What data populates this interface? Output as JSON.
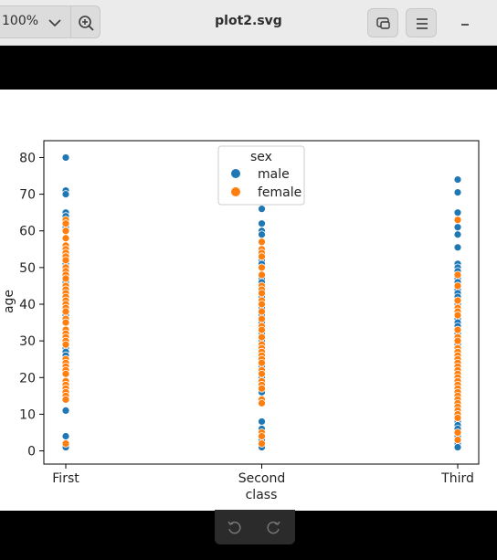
{
  "toolbar": {
    "zoom_value": "100%",
    "file_title": "plot2.svg",
    "zoom_menu_icon": "chevron-down-icon",
    "zoom_in_icon": "zoom-in-icon",
    "window_icon": "restore-window-icon",
    "menu_icon": "hamburger-menu-icon",
    "minimize_icon": "minimize-icon"
  },
  "bottom": {
    "rotate_left_icon": "rotate-left-icon",
    "rotate_right_icon": "rotate-right-icon"
  },
  "chart_data": {
    "type": "scatter",
    "xlabel": "class",
    "ylabel": "age",
    "categories": [
      "First",
      "Second",
      "Third"
    ],
    "yticks": [
      0,
      10,
      20,
      30,
      40,
      50,
      60,
      70,
      80
    ],
    "ylim": [
      -3.6,
      84.6
    ],
    "legend": {
      "title": "sex",
      "placement": "top-center"
    },
    "grid": false,
    "colors": {
      "male": "#1f77b4",
      "female": "#ff7f0e"
    },
    "series": [
      {
        "name": "male",
        "points": [
          {
            "x": "First",
            "y": 80
          },
          {
            "x": "First",
            "y": 71
          },
          {
            "x": "First",
            "y": 70
          },
          {
            "x": "First",
            "y": 65
          },
          {
            "x": "First",
            "y": 64
          },
          {
            "x": "First",
            "y": 62
          },
          {
            "x": "First",
            "y": 61
          },
          {
            "x": "First",
            "y": 60
          },
          {
            "x": "First",
            "y": 58
          },
          {
            "x": "First",
            "y": 56
          },
          {
            "x": "First",
            "y": 55
          },
          {
            "x": "First",
            "y": 54
          },
          {
            "x": "First",
            "y": 52
          },
          {
            "x": "First",
            "y": 51
          },
          {
            "x": "First",
            "y": 50
          },
          {
            "x": "First",
            "y": 49
          },
          {
            "x": "First",
            "y": 48
          },
          {
            "x": "First",
            "y": 47
          },
          {
            "x": "First",
            "y": 46
          },
          {
            "x": "First",
            "y": 45
          },
          {
            "x": "First",
            "y": 42
          },
          {
            "x": "First",
            "y": 40
          },
          {
            "x": "First",
            "y": 39
          },
          {
            "x": "First",
            "y": 38
          },
          {
            "x": "First",
            "y": 37
          },
          {
            "x": "First",
            "y": 36
          },
          {
            "x": "First",
            "y": 35
          },
          {
            "x": "First",
            "y": 33
          },
          {
            "x": "First",
            "y": 31
          },
          {
            "x": "First",
            "y": 30
          },
          {
            "x": "First",
            "y": 28
          },
          {
            "x": "First",
            "y": 27
          },
          {
            "x": "First",
            "y": 26
          },
          {
            "x": "First",
            "y": 24
          },
          {
            "x": "First",
            "y": 23
          },
          {
            "x": "First",
            "y": 21
          },
          {
            "x": "First",
            "y": 19
          },
          {
            "x": "First",
            "y": 18
          },
          {
            "x": "First",
            "y": 17
          },
          {
            "x": "First",
            "y": 11
          },
          {
            "x": "First",
            "y": 4
          },
          {
            "x": "First",
            "y": 1
          },
          {
            "x": "Second",
            "y": 66
          },
          {
            "x": "Second",
            "y": 62
          },
          {
            "x": "Second",
            "y": 60
          },
          {
            "x": "Second",
            "y": 59
          },
          {
            "x": "Second",
            "y": 57
          },
          {
            "x": "Second",
            "y": 54
          },
          {
            "x": "Second",
            "y": 52
          },
          {
            "x": "Second",
            "y": 51
          },
          {
            "x": "Second",
            "y": 50
          },
          {
            "x": "Second",
            "y": 47
          },
          {
            "x": "Second",
            "y": 46
          },
          {
            "x": "Second",
            "y": 44
          },
          {
            "x": "Second",
            "y": 42
          },
          {
            "x": "Second",
            "y": 39
          },
          {
            "x": "Second",
            "y": 37
          },
          {
            "x": "Second",
            "y": 36
          },
          {
            "x": "Second",
            "y": 35
          },
          {
            "x": "Second",
            "y": 34
          },
          {
            "x": "Second",
            "y": 33
          },
          {
            "x": "Second",
            "y": 32
          },
          {
            "x": "Second",
            "y": 31
          },
          {
            "x": "Second",
            "y": 30
          },
          {
            "x": "Second",
            "y": 29
          },
          {
            "x": "Second",
            "y": 28
          },
          {
            "x": "Second",
            "y": 27
          },
          {
            "x": "Second",
            "y": 26
          },
          {
            "x": "Second",
            "y": 25
          },
          {
            "x": "Second",
            "y": 24
          },
          {
            "x": "Second",
            "y": 23
          },
          {
            "x": "Second",
            "y": 22
          },
          {
            "x": "Second",
            "y": 21
          },
          {
            "x": "Second",
            "y": 20
          },
          {
            "x": "Second",
            "y": 19
          },
          {
            "x": "Second",
            "y": 18
          },
          {
            "x": "Second",
            "y": 16
          },
          {
            "x": "Second",
            "y": 8
          },
          {
            "x": "Second",
            "y": 6
          },
          {
            "x": "Second",
            "y": 3
          },
          {
            "x": "Second",
            "y": 1
          },
          {
            "x": "Third",
            "y": 74
          },
          {
            "x": "Third",
            "y": 70.5
          },
          {
            "x": "Third",
            "y": 65
          },
          {
            "x": "Third",
            "y": 61
          },
          {
            "x": "Third",
            "y": 59
          },
          {
            "x": "Third",
            "y": 55.5
          },
          {
            "x": "Third",
            "y": 51
          },
          {
            "x": "Third",
            "y": 50
          },
          {
            "x": "Third",
            "y": 49
          },
          {
            "x": "Third",
            "y": 48
          },
          {
            "x": "Third",
            "y": 47
          },
          {
            "x": "Third",
            "y": 46
          },
          {
            "x": "Third",
            "y": 45
          },
          {
            "x": "Third",
            "y": 44
          },
          {
            "x": "Third",
            "y": 43
          },
          {
            "x": "Third",
            "y": 42
          },
          {
            "x": "Third",
            "y": 41
          },
          {
            "x": "Third",
            "y": 40
          },
          {
            "x": "Third",
            "y": 39
          },
          {
            "x": "Third",
            "y": 38
          },
          {
            "x": "Third",
            "y": 36
          },
          {
            "x": "Third",
            "y": 35
          },
          {
            "x": "Third",
            "y": 34
          },
          {
            "x": "Third",
            "y": 33
          },
          {
            "x": "Third",
            "y": 32
          },
          {
            "x": "Third",
            "y": 31
          },
          {
            "x": "Third",
            "y": 30
          },
          {
            "x": "Third",
            "y": 29
          },
          {
            "x": "Third",
            "y": 28
          },
          {
            "x": "Third",
            "y": 26
          },
          {
            "x": "Third",
            "y": 25
          },
          {
            "x": "Third",
            "y": 24
          },
          {
            "x": "Third",
            "y": 23
          },
          {
            "x": "Third",
            "y": 22
          },
          {
            "x": "Third",
            "y": 21
          },
          {
            "x": "Third",
            "y": 20
          },
          {
            "x": "Third",
            "y": 19
          },
          {
            "x": "Third",
            "y": 18
          },
          {
            "x": "Third",
            "y": 17
          },
          {
            "x": "Third",
            "y": 16
          },
          {
            "x": "Third",
            "y": 15
          },
          {
            "x": "Third",
            "y": 14
          },
          {
            "x": "Third",
            "y": 11
          },
          {
            "x": "Third",
            "y": 10
          },
          {
            "x": "Third",
            "y": 9
          },
          {
            "x": "Third",
            "y": 8
          },
          {
            "x": "Third",
            "y": 7
          },
          {
            "x": "Third",
            "y": 6
          },
          {
            "x": "Third",
            "y": 4
          },
          {
            "x": "Third",
            "y": 2
          },
          {
            "x": "Third",
            "y": 1
          }
        ]
      },
      {
        "name": "female",
        "points": [
          {
            "x": "First",
            "y": 63
          },
          {
            "x": "First",
            "y": 62
          },
          {
            "x": "First",
            "y": 60
          },
          {
            "x": "First",
            "y": 58
          },
          {
            "x": "First",
            "y": 56
          },
          {
            "x": "First",
            "y": 55
          },
          {
            "x": "First",
            "y": 54
          },
          {
            "x": "First",
            "y": 53
          },
          {
            "x": "First",
            "y": 52
          },
          {
            "x": "First",
            "y": 50
          },
          {
            "x": "First",
            "y": 49
          },
          {
            "x": "First",
            "y": 48
          },
          {
            "x": "First",
            "y": 47
          },
          {
            "x": "First",
            "y": 45
          },
          {
            "x": "First",
            "y": 44
          },
          {
            "x": "First",
            "y": 43
          },
          {
            "x": "First",
            "y": 42
          },
          {
            "x": "First",
            "y": 41
          },
          {
            "x": "First",
            "y": 40
          },
          {
            "x": "First",
            "y": 39
          },
          {
            "x": "First",
            "y": 38
          },
          {
            "x": "First",
            "y": 36
          },
          {
            "x": "First",
            "y": 35
          },
          {
            "x": "First",
            "y": 33
          },
          {
            "x": "First",
            "y": 32
          },
          {
            "x": "First",
            "y": 31
          },
          {
            "x": "First",
            "y": 30
          },
          {
            "x": "First",
            "y": 29
          },
          {
            "x": "First",
            "y": 25
          },
          {
            "x": "First",
            "y": 24
          },
          {
            "x": "First",
            "y": 23
          },
          {
            "x": "First",
            "y": 22
          },
          {
            "x": "First",
            "y": 21
          },
          {
            "x": "First",
            "y": 19
          },
          {
            "x": "First",
            "y": 18
          },
          {
            "x": "First",
            "y": 17
          },
          {
            "x": "First",
            "y": 16
          },
          {
            "x": "First",
            "y": 15
          },
          {
            "x": "First",
            "y": 14
          },
          {
            "x": "First",
            "y": 2
          },
          {
            "x": "Second",
            "y": 57
          },
          {
            "x": "Second",
            "y": 55
          },
          {
            "x": "Second",
            "y": 54
          },
          {
            "x": "Second",
            "y": 53
          },
          {
            "x": "Second",
            "y": 50
          },
          {
            "x": "Second",
            "y": 48
          },
          {
            "x": "Second",
            "y": 45
          },
          {
            "x": "Second",
            "y": 44
          },
          {
            "x": "Second",
            "y": 43
          },
          {
            "x": "Second",
            "y": 41
          },
          {
            "x": "Second",
            "y": 40
          },
          {
            "x": "Second",
            "y": 38
          },
          {
            "x": "Second",
            "y": 36
          },
          {
            "x": "Second",
            "y": 34
          },
          {
            "x": "Second",
            "y": 33
          },
          {
            "x": "Second",
            "y": 31
          },
          {
            "x": "Second",
            "y": 29
          },
          {
            "x": "Second",
            "y": 28
          },
          {
            "x": "Second",
            "y": 27
          },
          {
            "x": "Second",
            "y": 26
          },
          {
            "x": "Second",
            "y": 25
          },
          {
            "x": "Second",
            "y": 24
          },
          {
            "x": "Second",
            "y": 22
          },
          {
            "x": "Second",
            "y": 21
          },
          {
            "x": "Second",
            "y": 19
          },
          {
            "x": "Second",
            "y": 18
          },
          {
            "x": "Second",
            "y": 17
          },
          {
            "x": "Second",
            "y": 14
          },
          {
            "x": "Second",
            "y": 13
          },
          {
            "x": "Second",
            "y": 5
          },
          {
            "x": "Second",
            "y": 4
          },
          {
            "x": "Second",
            "y": 2
          },
          {
            "x": "Third",
            "y": 63
          },
          {
            "x": "Third",
            "y": 48
          },
          {
            "x": "Third",
            "y": 45
          },
          {
            "x": "Third",
            "y": 41
          },
          {
            "x": "Third",
            "y": 39
          },
          {
            "x": "Third",
            "y": 38
          },
          {
            "x": "Third",
            "y": 37
          },
          {
            "x": "Third",
            "y": 33
          },
          {
            "x": "Third",
            "y": 31
          },
          {
            "x": "Third",
            "y": 30
          },
          {
            "x": "Third",
            "y": 28
          },
          {
            "x": "Third",
            "y": 27
          },
          {
            "x": "Third",
            "y": 26
          },
          {
            "x": "Third",
            "y": 25
          },
          {
            "x": "Third",
            "y": 24
          },
          {
            "x": "Third",
            "y": 23
          },
          {
            "x": "Third",
            "y": 22
          },
          {
            "x": "Third",
            "y": 21
          },
          {
            "x": "Third",
            "y": 20
          },
          {
            "x": "Third",
            "y": 19
          },
          {
            "x": "Third",
            "y": 18
          },
          {
            "x": "Third",
            "y": 17
          },
          {
            "x": "Third",
            "y": 16
          },
          {
            "x": "Third",
            "y": 15
          },
          {
            "x": "Third",
            "y": 14
          },
          {
            "x": "Third",
            "y": 13
          },
          {
            "x": "Third",
            "y": 12
          },
          {
            "x": "Third",
            "y": 11
          },
          {
            "x": "Third",
            "y": 10
          },
          {
            "x": "Third",
            "y": 9
          },
          {
            "x": "Third",
            "y": 5
          },
          {
            "x": "Third",
            "y": 3
          }
        ]
      }
    ]
  }
}
